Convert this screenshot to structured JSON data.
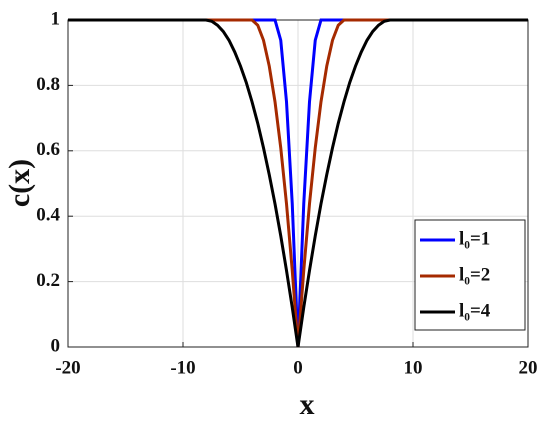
{
  "chart_data": {
    "type": "line",
    "x": [
      -20,
      -8,
      -7.5,
      -7,
      -6.5,
      -6,
      -5.5,
      -5,
      -4.5,
      -4,
      -3.5,
      -3,
      -2.5,
      -2,
      -1.5,
      -1,
      -0.5,
      0,
      0.5,
      1,
      1.5,
      2,
      2.5,
      3,
      3.5,
      4,
      4.5,
      5,
      5.5,
      6,
      6.5,
      7,
      7.5,
      8,
      20
    ],
    "series": [
      {
        "name": "l₀=1",
        "color": "#0000ff",
        "values": [
          1,
          1,
          1,
          1,
          1,
          1,
          1,
          1,
          1,
          1,
          1,
          1,
          1,
          1,
          0.938,
          0.75,
          0.438,
          0,
          0.438,
          0.75,
          0.938,
          1,
          1,
          1,
          1,
          1,
          1,
          1,
          1,
          1,
          1,
          1,
          1,
          1,
          1
        ]
      },
      {
        "name": "l₀=2",
        "color": "#a52a00",
        "values": [
          1,
          1,
          1,
          1,
          1,
          1,
          1,
          1,
          1,
          1,
          0.984,
          0.938,
          0.859,
          0.75,
          0.609,
          0.438,
          0.234,
          0,
          0.234,
          0.438,
          0.609,
          0.75,
          0.859,
          0.938,
          0.984,
          1,
          1,
          1,
          1,
          1,
          1,
          1,
          1,
          1,
          1
        ]
      },
      {
        "name": "l₀=4",
        "color": "#000000",
        "values": [
          1,
          1,
          0.996,
          0.984,
          0.965,
          0.938,
          0.902,
          0.859,
          0.809,
          0.75,
          0.684,
          0.609,
          0.527,
          0.438,
          0.34,
          0.234,
          0.121,
          0,
          0.121,
          0.234,
          0.34,
          0.438,
          0.527,
          0.609,
          0.684,
          0.75,
          0.809,
          0.859,
          0.902,
          0.938,
          0.965,
          0.984,
          0.996,
          1,
          1
        ]
      }
    ],
    "xlabel": "x",
    "ylabel": "c(x)",
    "xlim": [
      -20,
      20
    ],
    "xticks": [
      -20,
      -10,
      0,
      10,
      20
    ],
    "ylim": [
      0,
      1
    ],
    "yticks": [
      0,
      0.2,
      0.4,
      0.6,
      0.8,
      1
    ],
    "grid": true,
    "legend": "lower right"
  }
}
